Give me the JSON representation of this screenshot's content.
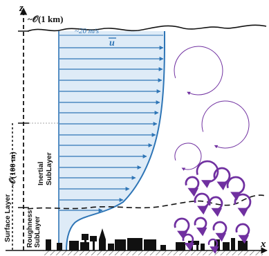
{
  "labels": {
    "z_axis": "z",
    "x_axis": "x",
    "height_top": "~\u0000(1 km)",
    "speed": "~20 m/s",
    "mean_velocity": "u",
    "surface_layer": "Surface Layer",
    "layer_height": "~\u0000(100 m)",
    "inertial_line1": "Inertial",
    "inertial_line2": "SubLayer",
    "roughness_line1": "Roughness",
    "roughness_line2": "SubLayer"
  },
  "colors": {
    "profile_fill": "#deebf7",
    "profile_line": "#2e75b6",
    "eddy": "#7030a0",
    "ink": "#111111"
  },
  "icons": {
    "eddy": "circular-arrow-icon",
    "buildings": "city-skyline-icon"
  }
}
